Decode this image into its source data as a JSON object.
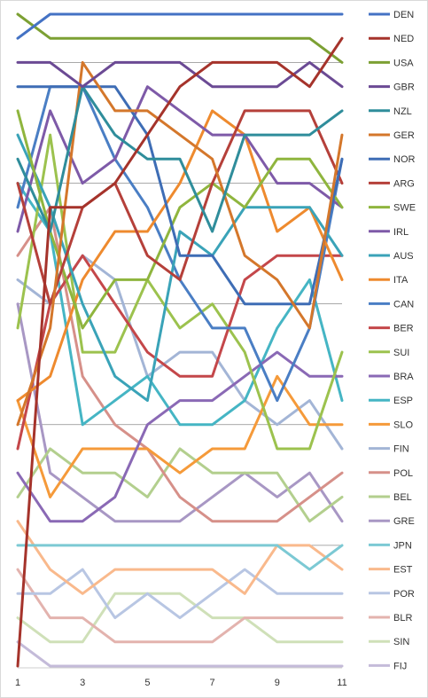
{
  "chart_data": {
    "type": "line",
    "x": [
      1,
      2,
      3,
      4,
      5,
      6,
      7,
      8,
      9,
      10,
      11
    ],
    "xticks": [
      1,
      3,
      5,
      7,
      9,
      11
    ],
    "ylim": [
      28,
      1
    ],
    "grid": "horizontal",
    "legend": "right",
    "series": [
      {
        "name": "DEN",
        "color": "#4472C4",
        "values": [
          2,
          1,
          1,
          1,
          1,
          1,
          1,
          1,
          1,
          1,
          1
        ]
      },
      {
        "name": "NED",
        "color": "#A5332B",
        "values": [
          28,
          9,
          9,
          8,
          6,
          4,
          3,
          3,
          3,
          4,
          2
        ]
      },
      {
        "name": "USA",
        "color": "#7CA033",
        "values": [
          1,
          2,
          2,
          2,
          2,
          2,
          2,
          2,
          2,
          2,
          3
        ]
      },
      {
        "name": "GBR",
        "color": "#6B4A94",
        "values": [
          3,
          3,
          4,
          3,
          3,
          3,
          4,
          4,
          4,
          3,
          4
        ]
      },
      {
        "name": "NZL",
        "color": "#2F8D9B",
        "values": [
          7,
          10,
          4,
          6,
          7,
          7,
          10,
          6,
          6,
          6,
          5
        ]
      },
      {
        "name": "GER",
        "color": "#D4772B",
        "values": [
          18,
          14,
          3,
          5,
          5,
          6,
          7,
          11,
          12,
          14,
          6
        ]
      },
      {
        "name": "NOR",
        "color": "#3E6DB5",
        "values": [
          4,
          4,
          4,
          4,
          6,
          11,
          11,
          13,
          13,
          13,
          7
        ]
      },
      {
        "name": "ARG",
        "color": "#B5403A",
        "values": [
          8,
          13,
          9,
          8,
          11,
          12,
          8,
          5,
          5,
          5,
          8
        ]
      },
      {
        "name": "SWE",
        "color": "#8FB53E",
        "values": [
          5,
          10,
          14,
          12,
          12,
          9,
          8,
          9,
          7,
          7,
          9
        ]
      },
      {
        "name": "IRL",
        "color": "#7E5AA8",
        "values": [
          10,
          5,
          8,
          7,
          4,
          5,
          6,
          6,
          8,
          8,
          9
        ]
      },
      {
        "name": "AUS",
        "color": "#3AA3B8",
        "values": [
          6,
          9,
          13,
          16,
          17,
          10,
          11,
          9,
          9,
          9,
          11
        ]
      },
      {
        "name": "ITA",
        "color": "#EE8A2E",
        "values": [
          17,
          16,
          12,
          10,
          10,
          8,
          5,
          6,
          10,
          9,
          12
        ]
      },
      {
        "name": "CAN",
        "color": "#4A7EC4",
        "values": [
          9,
          4,
          4,
          7,
          9,
          12,
          14,
          14,
          17,
          14,
          7
        ]
      },
      {
        "name": "BER",
        "color": "#C4474A",
        "values": [
          19,
          13,
          11,
          13,
          15,
          16,
          16,
          12,
          11,
          11,
          11
        ]
      },
      {
        "name": "SUI",
        "color": "#9CC24E",
        "values": [
          14,
          6,
          15,
          15,
          12,
          14,
          13,
          15,
          19,
          19,
          15
        ]
      },
      {
        "name": "BRA",
        "color": "#8A69B5",
        "values": [
          20,
          22,
          22,
          21,
          18,
          17,
          17,
          16,
          15,
          16,
          16
        ]
      },
      {
        "name": "ESP",
        "color": "#45B5C4",
        "values": [
          8,
          10,
          18,
          17,
          16,
          18,
          18,
          17,
          14,
          12,
          17
        ]
      },
      {
        "name": "SLO",
        "color": "#F59A3A",
        "values": [
          17,
          21,
          19,
          19,
          19,
          20,
          19,
          19,
          16,
          18,
          18
        ]
      },
      {
        "name": "FIN",
        "color": "#A3B5D6",
        "values": [
          12,
          13,
          11,
          12,
          16,
          15,
          15,
          17,
          18,
          17,
          19
        ]
      },
      {
        "name": "POL",
        "color": "#D69089",
        "values": [
          11,
          9,
          16,
          18,
          19,
          21,
          22,
          22,
          22,
          21,
          20
        ]
      },
      {
        "name": "BEL",
        "color": "#B3CF8E",
        "values": [
          21,
          19,
          20,
          20,
          21,
          19,
          20,
          20,
          20,
          22,
          21
        ]
      },
      {
        "name": "GRE",
        "color": "#A897C4",
        "values": [
          13,
          20,
          21,
          22,
          22,
          22,
          21,
          20,
          21,
          20,
          22
        ]
      },
      {
        "name": "JPN",
        "color": "#7CC9D4",
        "values": [
          23,
          23,
          23,
          23,
          23,
          23,
          23,
          23,
          23,
          24,
          23
        ]
      },
      {
        "name": "EST",
        "color": "#F9B98C",
        "values": [
          22,
          24,
          25,
          24,
          24,
          24,
          24,
          25,
          23,
          23,
          24
        ]
      },
      {
        "name": "POR",
        "color": "#B8C6E3",
        "values": [
          25,
          25,
          24,
          26,
          25,
          26,
          25,
          24,
          25,
          25,
          25
        ]
      },
      {
        "name": "BLR",
        "color": "#E3B3AE",
        "values": [
          24,
          26,
          26,
          27,
          27,
          27,
          27,
          26,
          26,
          26,
          26
        ]
      },
      {
        "name": "SIN",
        "color": "#CFE0B8",
        "values": [
          26,
          27,
          27,
          25,
          25,
          25,
          26,
          26,
          27,
          27,
          27
        ]
      },
      {
        "name": "FIJ",
        "color": "#C4BBD9",
        "values": [
          27,
          28,
          28,
          28,
          28,
          28,
          28,
          28,
          28,
          28,
          28
        ]
      }
    ]
  }
}
